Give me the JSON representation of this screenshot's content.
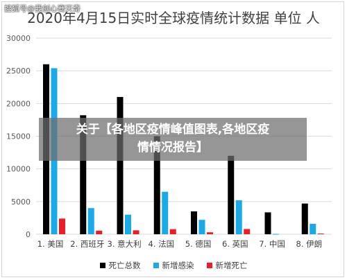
{
  "watermark": "搜狐号@我创心骞天奇",
  "overlay": {
    "line1": "关于【各地区疫情峰值图表,各地区疫",
    "line2": "情情况报告】"
  },
  "chart_data": {
    "type": "bar",
    "title": "2020年4月15日实时全球疫情统计数据 单位 人",
    "xlabel": "",
    "ylabel": "",
    "categories": [
      "1. 美国",
      "2. 西班牙",
      "3. 意大利",
      "4. 法国",
      "5. 德国",
      "6. 英国",
      "7. 中国",
      "8. 伊朗"
    ],
    "ylim": [
      0,
      30000
    ],
    "yticks": [
      "0",
      "5000",
      "10000",
      "15000",
      "20000",
      "25000",
      "30000"
    ],
    "grid": true,
    "legend_position": "bottom",
    "series": [
      {
        "name": "死亡总数",
        "color": "#000000",
        "values": [
          26000,
          18200,
          21000,
          15000,
          3500,
          12000,
          3350,
          4700
        ]
      },
      {
        "name": "新增感染",
        "color": "#1aaae8",
        "values": [
          25400,
          4000,
          3000,
          6500,
          2200,
          5200,
          50,
          1600
        ]
      },
      {
        "name": "新增死亡",
        "color": "#ee1c25",
        "values": [
          2400,
          550,
          600,
          780,
          300,
          800,
          0,
          100
        ]
      }
    ]
  }
}
